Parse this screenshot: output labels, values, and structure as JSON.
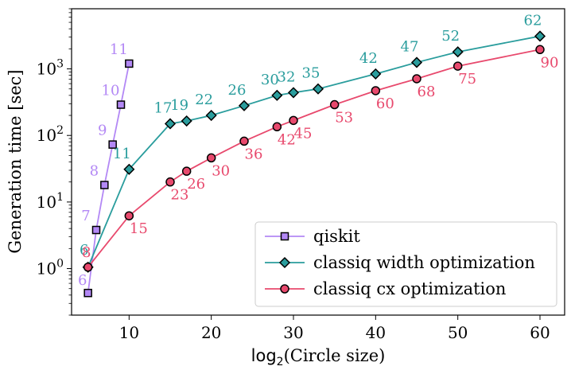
{
  "chart_data": {
    "type": "line",
    "title": "",
    "xlabel": "log",
    "xlabel_sub": "2",
    "xlabel_rest": "(Circle size)",
    "ylabel": "Generation time [sec]",
    "xscale": "linear",
    "yscale": "log",
    "xlim": [
      3,
      63
    ],
    "ylim": [
      0.2,
      8000
    ],
    "xticks": [
      10,
      20,
      30,
      40,
      50,
      60
    ],
    "xtick_labels": [
      "10",
      "20",
      "30",
      "40",
      "50",
      "60"
    ],
    "yticks": [
      1,
      10,
      100,
      1000
    ],
    "ytick_base": "10",
    "ytick_exponents": [
      "0",
      "1",
      "2",
      "3"
    ],
    "legend_position": "bottom-right",
    "series": [
      {
        "name": "qiskit",
        "color": "#b388f5",
        "marker": "square",
        "x": [
          5,
          6,
          7,
          8,
          9,
          10
        ],
        "y": [
          0.43,
          3.8,
          18,
          73,
          290,
          1200
        ],
        "point_labels": [
          "6",
          "7",
          "8",
          "9",
          "10",
          "11"
        ]
      },
      {
        "name": "classiq width optimization",
        "color": "#2a9d9d",
        "marker": "diamond",
        "x": [
          5,
          10,
          15,
          17,
          20,
          24,
          28,
          30,
          33,
          40,
          45,
          50,
          60
        ],
        "y": [
          1.05,
          31,
          150,
          165,
          200,
          280,
          400,
          440,
          500,
          840,
          1250,
          1800,
          3100
        ],
        "point_labels": [
          "6",
          "11",
          "17",
          "19",
          "22",
          "26",
          "30",
          "32",
          "35",
          "42",
          "47",
          "52",
          "62"
        ]
      },
      {
        "name": "classiq cx optimization",
        "color": "#e8496d",
        "marker": "circle",
        "x": [
          5,
          10,
          15,
          17,
          20,
          24,
          28,
          30,
          35,
          40,
          45,
          50,
          60
        ],
        "y": [
          1.05,
          6.2,
          20,
          29,
          46,
          82,
          135,
          168,
          290,
          470,
          710,
          1100,
          1950
        ],
        "point_labels": [
          "8",
          "15",
          "23",
          "26",
          "30",
          "36",
          "42",
          "45",
          "53",
          "60",
          "68",
          "75",
          "90"
        ]
      }
    ]
  }
}
